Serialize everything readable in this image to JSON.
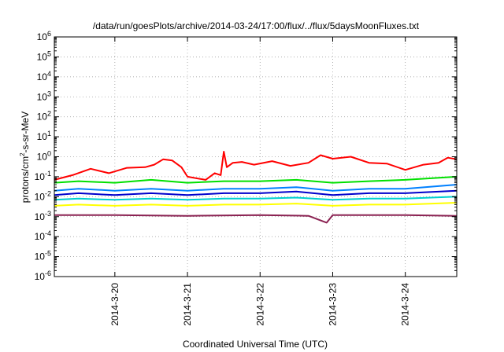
{
  "chart_data": {
    "type": "line",
    "title": "/data/run/goesPlots/archive/2014-03-24/17:00/flux/../flux/5daysMoonFluxes.txt",
    "xlabel": "Coordinated Universal Time (UTC)",
    "ylabel": {
      "base": "protons/cm",
      "sup": "2",
      "rest": "-s-sr-MeV"
    },
    "yscale": "log",
    "ylim": [
      1e-06,
      1000000.0
    ],
    "yticks": [
      {
        "exp": "-6",
        "value": 1e-06
      },
      {
        "exp": "-5",
        "value": 1e-05
      },
      {
        "exp": "-4",
        "value": 0.0001
      },
      {
        "exp": "-3",
        "value": 0.001
      },
      {
        "exp": "-2",
        "value": 0.01
      },
      {
        "exp": "-1",
        "value": 0.1
      },
      {
        "exp": "0",
        "value": 1
      },
      {
        "exp": "1",
        "value": 10
      },
      {
        "exp": "2",
        "value": 100
      },
      {
        "exp": "3",
        "value": 1000
      },
      {
        "exp": "4",
        "value": 10000
      },
      {
        "exp": "5",
        "value": 100000
      },
      {
        "exp": "6",
        "value": 1000000
      }
    ],
    "xlim": [
      "2014-03-19T04:00",
      "2014-03-24T17:00"
    ],
    "xticks": [
      {
        "label": "2014-3-20",
        "at": "2014-03-20T00:00"
      },
      {
        "label": "2014-3-21",
        "at": "2014-03-21T00:00"
      },
      {
        "label": "2014-3-22",
        "at": "2014-03-22T00:00"
      },
      {
        "label": "2014-3-23",
        "at": "2014-03-23T00:00"
      },
      {
        "label": "2014-3-24",
        "at": "2014-03-24T00:00"
      }
    ],
    "grid": true,
    "series": [
      {
        "color": "#ff0000",
        "values": [
          [
            "2014-03-19T04:00",
            0.07
          ],
          [
            "2014-03-19T10:00",
            0.12
          ],
          [
            "2014-03-19T16:00",
            0.25
          ],
          [
            "2014-03-19T22:00",
            0.15
          ],
          [
            "2014-03-20T04:00",
            0.28
          ],
          [
            "2014-03-20T10:00",
            0.3
          ],
          [
            "2014-03-20T13:00",
            0.4
          ],
          [
            "2014-03-20T16:00",
            0.75
          ],
          [
            "2014-03-20T19:00",
            0.65
          ],
          [
            "2014-03-20T22:00",
            0.3
          ],
          [
            "2014-03-21T00:00",
            0.1
          ],
          [
            "2014-03-21T06:00",
            0.07
          ],
          [
            "2014-03-21T09:00",
            0.15
          ],
          [
            "2014-03-21T11:00",
            0.12
          ],
          [
            "2014-03-21T12:00",
            1.8
          ],
          [
            "2014-03-21T13:00",
            0.3
          ],
          [
            "2014-03-21T15:00",
            0.5
          ],
          [
            "2014-03-21T18:00",
            0.55
          ],
          [
            "2014-03-21T22:00",
            0.4
          ],
          [
            "2014-03-22T04:00",
            0.6
          ],
          [
            "2014-03-22T10:00",
            0.35
          ],
          [
            "2014-03-22T16:00",
            0.5
          ],
          [
            "2014-03-22T20:00",
            1.2
          ],
          [
            "2014-03-23T00:00",
            0.8
          ],
          [
            "2014-03-23T06:00",
            1.0
          ],
          [
            "2014-03-23T12:00",
            0.5
          ],
          [
            "2014-03-23T18:00",
            0.45
          ],
          [
            "2014-03-24T00:00",
            0.22
          ],
          [
            "2014-03-24T06:00",
            0.4
          ],
          [
            "2014-03-24T11:00",
            0.5
          ],
          [
            "2014-03-24T14:00",
            0.9
          ],
          [
            "2014-03-24T17:00",
            0.75
          ]
        ]
      },
      {
        "color": "#00e000",
        "values": [
          [
            "2014-03-19T04:00",
            0.05
          ],
          [
            "2014-03-19T12:00",
            0.06
          ],
          [
            "2014-03-20T00:00",
            0.05
          ],
          [
            "2014-03-20T12:00",
            0.07
          ],
          [
            "2014-03-21T00:00",
            0.05
          ],
          [
            "2014-03-21T12:00",
            0.06
          ],
          [
            "2014-03-22T00:00",
            0.06
          ],
          [
            "2014-03-22T12:00",
            0.07
          ],
          [
            "2014-03-23T00:00",
            0.05
          ],
          [
            "2014-03-23T12:00",
            0.06
          ],
          [
            "2014-03-24T00:00",
            0.07
          ],
          [
            "2014-03-24T17:00",
            0.1
          ]
        ]
      },
      {
        "color": "#0080ff",
        "values": [
          [
            "2014-03-19T04:00",
            0.02
          ],
          [
            "2014-03-19T12:00",
            0.025
          ],
          [
            "2014-03-20T00:00",
            0.02
          ],
          [
            "2014-03-20T12:00",
            0.025
          ],
          [
            "2014-03-21T00:00",
            0.02
          ],
          [
            "2014-03-21T12:00",
            0.025
          ],
          [
            "2014-03-22T00:00",
            0.025
          ],
          [
            "2014-03-22T12:00",
            0.03
          ],
          [
            "2014-03-23T00:00",
            0.02
          ],
          [
            "2014-03-23T12:00",
            0.025
          ],
          [
            "2014-03-24T00:00",
            0.025
          ],
          [
            "2014-03-24T17:00",
            0.04
          ]
        ]
      },
      {
        "color": "#0000cc",
        "values": [
          [
            "2014-03-19T04:00",
            0.012
          ],
          [
            "2014-03-19T12:00",
            0.015
          ],
          [
            "2014-03-20T00:00",
            0.012
          ],
          [
            "2014-03-20T12:00",
            0.015
          ],
          [
            "2014-03-21T00:00",
            0.012
          ],
          [
            "2014-03-21T12:00",
            0.015
          ],
          [
            "2014-03-22T00:00",
            0.015
          ],
          [
            "2014-03-22T12:00",
            0.018
          ],
          [
            "2014-03-23T00:00",
            0.012
          ],
          [
            "2014-03-23T12:00",
            0.015
          ],
          [
            "2014-03-24T00:00",
            0.015
          ],
          [
            "2014-03-24T17:00",
            0.02
          ]
        ]
      },
      {
        "color": "#00d0d0",
        "values": [
          [
            "2014-03-19T04:00",
            0.007
          ],
          [
            "2014-03-19T12:00",
            0.008
          ],
          [
            "2014-03-20T00:00",
            0.007
          ],
          [
            "2014-03-20T12:00",
            0.008
          ],
          [
            "2014-03-21T00:00",
            0.007
          ],
          [
            "2014-03-21T12:00",
            0.008
          ],
          [
            "2014-03-22T00:00",
            0.008
          ],
          [
            "2014-03-22T12:00",
            0.009
          ],
          [
            "2014-03-23T00:00",
            0.007
          ],
          [
            "2014-03-23T12:00",
            0.008
          ],
          [
            "2014-03-24T00:00",
            0.008
          ],
          [
            "2014-03-24T17:00",
            0.01
          ]
        ]
      },
      {
        "color": "#ffff00",
        "values": [
          [
            "2014-03-19T04:00",
            0.0035
          ],
          [
            "2014-03-19T12:00",
            0.004
          ],
          [
            "2014-03-20T00:00",
            0.0035
          ],
          [
            "2014-03-20T12:00",
            0.004
          ],
          [
            "2014-03-21T00:00",
            0.0035
          ],
          [
            "2014-03-21T12:00",
            0.004
          ],
          [
            "2014-03-22T00:00",
            0.004
          ],
          [
            "2014-03-22T12:00",
            0.0045
          ],
          [
            "2014-03-23T00:00",
            0.0035
          ],
          [
            "2014-03-23T12:00",
            0.004
          ],
          [
            "2014-03-24T00:00",
            0.004
          ],
          [
            "2014-03-24T17:00",
            0.005
          ]
        ]
      },
      {
        "color": "#8b2252",
        "values": [
          [
            "2014-03-19T04:00",
            0.0012
          ],
          [
            "2014-03-20T00:00",
            0.0012
          ],
          [
            "2014-03-21T00:00",
            0.0011
          ],
          [
            "2014-03-22T00:00",
            0.0012
          ],
          [
            "2014-03-22T16:00",
            0.0011
          ],
          [
            "2014-03-22T22:00",
            0.0005
          ],
          [
            "2014-03-23T00:00",
            0.0012
          ],
          [
            "2014-03-24T00:00",
            0.0012
          ],
          [
            "2014-03-24T17:00",
            0.0011
          ]
        ]
      }
    ]
  }
}
